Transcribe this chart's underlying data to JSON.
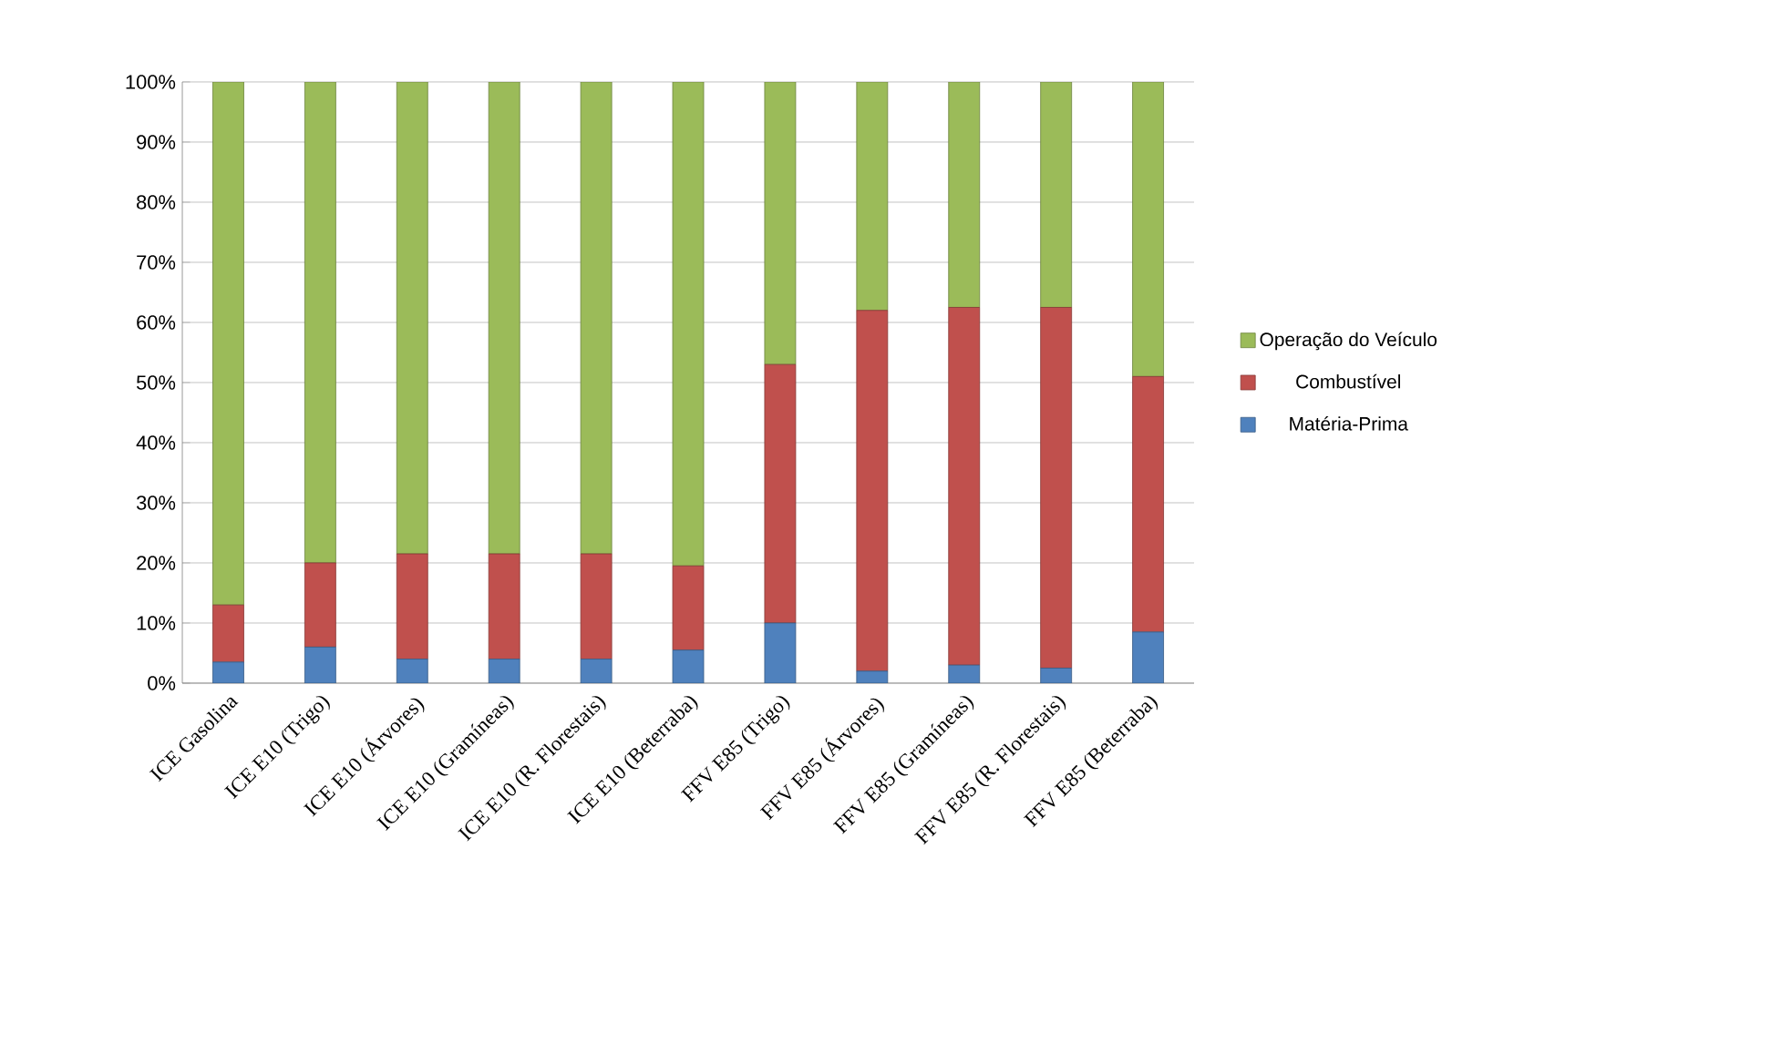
{
  "chart_data": {
    "type": "bar",
    "stacked": true,
    "categories": [
      "ICE Gasolina",
      "ICE E10 (Trigo)",
      "ICE E10 (Árvores)",
      "ICE E10 (Gramíneas)",
      "ICE E10 (R. Florestais)",
      "ICE E10 (Beterraba)",
      "FFV E85 (Trigo)",
      "FFV E85 (Árvores)",
      "FFV E85 (Gramíneas)",
      "FFV E85 (R. Florestais)",
      "FFV E85 (Beterraba)"
    ],
    "series": [
      {
        "name": "Matéria-Prima",
        "color": "#4f81bd",
        "values": [
          3.5,
          6,
          4,
          4,
          4,
          5.5,
          10,
          2,
          3,
          2.5,
          8.5
        ]
      },
      {
        "name": "Combustível",
        "color": "#c0504d",
        "values": [
          9.5,
          14,
          17.5,
          17.5,
          17.5,
          14,
          43,
          60,
          59.5,
          60,
          42.5
        ]
      },
      {
        "name": "Operação do Veículo",
        "color": "#9bbb59",
        "values": [
          87,
          80,
          78.5,
          78.5,
          78.5,
          80.5,
          47,
          38,
          37.5,
          37.5,
          49
        ]
      }
    ],
    "ylim": [
      0,
      100
    ],
    "yticks": [
      {
        "value": 0,
        "label": "0%"
      },
      {
        "value": 10,
        "label": "10%"
      },
      {
        "value": 20,
        "label": "20%"
      },
      {
        "value": 30,
        "label": "30%"
      },
      {
        "value": 40,
        "label": "40%"
      },
      {
        "value": 50,
        "label": "50%"
      },
      {
        "value": 60,
        "label": "60%"
      },
      {
        "value": 70,
        "label": "70%"
      },
      {
        "value": 80,
        "label": "80%"
      },
      {
        "value": 90,
        "label": "90%"
      },
      {
        "value": 100,
        "label": "100%"
      }
    ],
    "grid": "y",
    "legend": "right"
  }
}
